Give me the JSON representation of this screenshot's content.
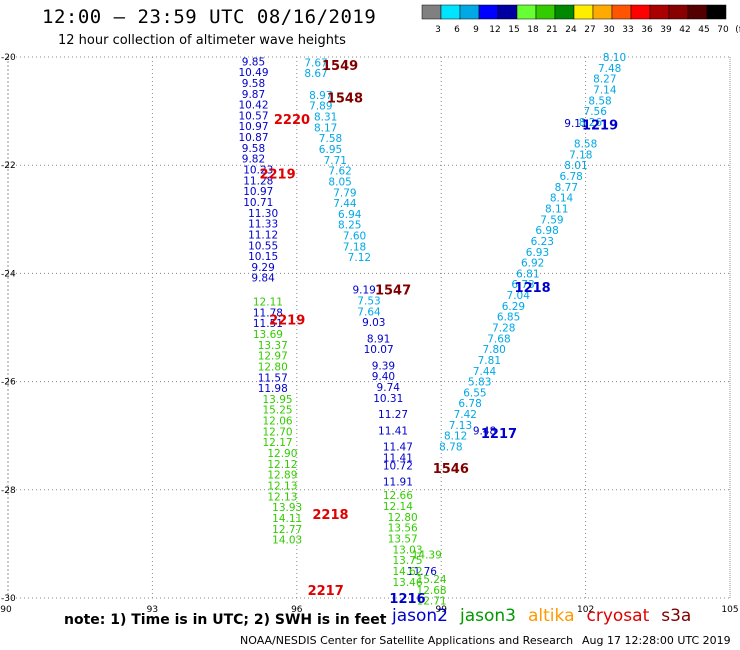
{
  "header": {
    "title": "12:00 – 23:59 UTC 08/16/2019",
    "subtitle": "12 hour collection of altimeter wave heights"
  },
  "colorbar": {
    "labels": [
      "3",
      "6",
      "9",
      "12",
      "15",
      "18",
      "21",
      "24",
      "27",
      "30",
      "33",
      "36",
      "39",
      "42",
      "45",
      "70",
      "(ft)"
    ],
    "colors": [
      "#808080",
      "#00e5ff",
      "#00a8e6",
      "#0000ff",
      "#0000a0",
      "#66ff33",
      "#33cc00",
      "#008800",
      "#ffee00",
      "#ffaa00",
      "#ff5500",
      "#ff0000",
      "#aa0000",
      "#880000",
      "#550000",
      "#000000"
    ]
  },
  "chart_data": {
    "type": "scatter",
    "title": "12 hour collection of altimeter wave heights",
    "xlim": [
      90,
      105
    ],
    "ylim": [
      -30,
      -20
    ],
    "xticks": [
      "90",
      "93",
      "96",
      "99",
      "102",
      "105"
    ],
    "yticks": [
      "-20",
      "-22",
      "-24",
      "-26",
      "-28",
      "-30"
    ],
    "grid": true,
    "series": [
      {
        "name": "jason2",
        "color": "#0000cc",
        "points": [
          {
            "lon": 95.1,
            "lat": -20.08,
            "v": "9.85"
          },
          {
            "lon": 95.1,
            "lat": -20.28,
            "v": "10.49"
          },
          {
            "lon": 95.1,
            "lat": -20.48,
            "v": "9.58"
          },
          {
            "lon": 95.1,
            "lat": -20.68,
            "v": "9.87"
          },
          {
            "lon": 95.1,
            "lat": -20.88,
            "v": "10.42"
          },
          {
            "lon": 95.1,
            "lat": -21.08,
            "v": "10.57"
          },
          {
            "lon": 95.1,
            "lat": -21.28,
            "v": "10.97"
          },
          {
            "lon": 95.1,
            "lat": -21.48,
            "v": "10.87"
          },
          {
            "lon": 95.1,
            "lat": -21.68,
            "v": "9.58"
          },
          {
            "lon": 95.1,
            "lat": -21.88,
            "v": "9.82"
          },
          {
            "lon": 95.2,
            "lat": -22.08,
            "v": "10.23"
          },
          {
            "lon": 95.2,
            "lat": -22.28,
            "v": "11.28"
          },
          {
            "lon": 95.2,
            "lat": -22.48,
            "v": "10.97"
          },
          {
            "lon": 95.2,
            "lat": -22.68,
            "v": "10.71"
          },
          {
            "lon": 95.3,
            "lat": -22.88,
            "v": "11.30"
          },
          {
            "lon": 95.3,
            "lat": -23.08,
            "v": "11.33"
          },
          {
            "lon": 95.3,
            "lat": -23.28,
            "v": "11.12"
          },
          {
            "lon": 95.3,
            "lat": -23.48,
            "v": "10.55"
          },
          {
            "lon": 95.3,
            "lat": -23.68,
            "v": "10.15"
          },
          {
            "lon": 95.3,
            "lat": -23.88,
            "v": "9.29"
          },
          {
            "lon": 95.3,
            "lat": -24.08,
            "v": "9.84"
          },
          {
            "lon": 95.4,
            "lat": -24.72,
            "v": "11.78"
          },
          {
            "lon": 95.4,
            "lat": -24.92,
            "v": "11.51"
          },
          {
            "lon": 95.5,
            "lat": -25.92,
            "v": "11.57"
          },
          {
            "lon": 95.5,
            "lat": -26.12,
            "v": "11.98"
          },
          {
            "lon": 97.4,
            "lat": -24.3,
            "v": "9.19"
          },
          {
            "lon": 97.6,
            "lat": -24.9,
            "v": "9.03"
          },
          {
            "lon": 97.7,
            "lat": -25.2,
            "v": "8.91"
          },
          {
            "lon": 97.7,
            "lat": -25.4,
            "v": "10.07"
          },
          {
            "lon": 97.8,
            "lat": -25.7,
            "v": "9.39"
          },
          {
            "lon": 97.8,
            "lat": -25.9,
            "v": "9.40"
          },
          {
            "lon": 97.9,
            "lat": -26.1,
            "v": "9.74"
          },
          {
            "lon": 97.9,
            "lat": -26.3,
            "v": "10.31"
          },
          {
            "lon": 98.0,
            "lat": -26.6,
            "v": "11.27"
          },
          {
            "lon": 98.0,
            "lat": -26.9,
            "v": "11.41"
          },
          {
            "lon": 98.1,
            "lat": -27.2,
            "v": "11.47"
          },
          {
            "lon": 98.1,
            "lat": -27.4,
            "v": "11.41"
          },
          {
            "lon": 98.1,
            "lat": -27.55,
            "v": "10.72"
          },
          {
            "lon": 98.1,
            "lat": -27.85,
            "v": "11.91"
          },
          {
            "lon": 98.6,
            "lat": -29.5,
            "v": "11.76"
          },
          {
            "lon": 99.9,
            "lat": -26.9,
            "v": "9.48"
          },
          {
            "lon": 101.8,
            "lat": -21.22,
            "v": "9.11"
          }
        ]
      },
      {
        "name": "jason3",
        "color": "#33cc00",
        "points": [
          {
            "lon": 95.4,
            "lat": -24.52,
            "v": "12.11"
          },
          {
            "lon": 95.4,
            "lat": -25.12,
            "v": "13.69"
          },
          {
            "lon": 95.5,
            "lat": -25.32,
            "v": "13.37"
          },
          {
            "lon": 95.5,
            "lat": -25.52,
            "v": "12.97"
          },
          {
            "lon": 95.5,
            "lat": -25.72,
            "v": "12.80"
          },
          {
            "lon": 95.6,
            "lat": -26.32,
            "v": "13.95"
          },
          {
            "lon": 95.6,
            "lat": -26.52,
            "v": "15.25"
          },
          {
            "lon": 95.6,
            "lat": -26.72,
            "v": "12.06"
          },
          {
            "lon": 95.6,
            "lat": -26.92,
            "v": "12.70"
          },
          {
            "lon": 95.6,
            "lat": -27.12,
            "v": "12.17"
          },
          {
            "lon": 95.7,
            "lat": -27.32,
            "v": "12.90"
          },
          {
            "lon": 95.7,
            "lat": -27.52,
            "v": "12.12"
          },
          {
            "lon": 95.7,
            "lat": -27.72,
            "v": "12.89"
          },
          {
            "lon": 95.7,
            "lat": -27.92,
            "v": "12.13"
          },
          {
            "lon": 95.7,
            "lat": -28.12,
            "v": "12.13"
          },
          {
            "lon": 95.8,
            "lat": -28.32,
            "v": "13.93"
          },
          {
            "lon": 95.8,
            "lat": -28.52,
            "v": "14.11"
          },
          {
            "lon": 95.8,
            "lat": -28.72,
            "v": "12.77"
          },
          {
            "lon": 95.8,
            "lat": -28.92,
            "v": "14.03"
          },
          {
            "lon": 98.1,
            "lat": -28.1,
            "v": "12.66"
          },
          {
            "lon": 98.1,
            "lat": -28.3,
            "v": "12.14"
          },
          {
            "lon": 98.2,
            "lat": -28.5,
            "v": "12.80"
          },
          {
            "lon": 98.2,
            "lat": -28.7,
            "v": "13.56"
          },
          {
            "lon": 98.2,
            "lat": -28.9,
            "v": "13.57"
          },
          {
            "lon": 98.3,
            "lat": -29.1,
            "v": "13.03"
          },
          {
            "lon": 98.3,
            "lat": -29.3,
            "v": "13.75"
          },
          {
            "lon": 98.3,
            "lat": -29.5,
            "v": "14.62"
          },
          {
            "lon": 98.3,
            "lat": -29.7,
            "v": "13.46"
          },
          {
            "lon": 98.7,
            "lat": -29.2,
            "v": "14.39"
          },
          {
            "lon": 98.8,
            "lat": -29.65,
            "v": "15.24"
          },
          {
            "lon": 98.8,
            "lat": -29.85,
            "v": "12.68"
          },
          {
            "lon": 98.8,
            "lat": -30.05,
            "v": "12.71"
          }
        ]
      },
      {
        "name": "altika",
        "color": "#00a8e6",
        "points": [
          {
            "lon": 96.4,
            "lat": -20.1,
            "v": "7.67"
          },
          {
            "lon": 96.4,
            "lat": -20.3,
            "v": "8.67"
          },
          {
            "lon": 96.5,
            "lat": -20.7,
            "v": "8.97"
          },
          {
            "lon": 96.5,
            "lat": -20.9,
            "v": "7.89"
          },
          {
            "lon": 96.6,
            "lat": -21.1,
            "v": "8.31"
          },
          {
            "lon": 96.6,
            "lat": -21.3,
            "v": "8.17"
          },
          {
            "lon": 96.7,
            "lat": -21.5,
            "v": "7.58"
          },
          {
            "lon": 96.7,
            "lat": -21.7,
            "v": "6.95"
          },
          {
            "lon": 96.8,
            "lat": -21.9,
            "v": "7.71"
          },
          {
            "lon": 96.9,
            "lat": -22.1,
            "v": "7.62"
          },
          {
            "lon": 96.9,
            "lat": -22.3,
            "v": "8.05"
          },
          {
            "lon": 97.0,
            "lat": -22.5,
            "v": "7.79"
          },
          {
            "lon": 97.0,
            "lat": -22.7,
            "v": "7.44"
          },
          {
            "lon": 97.1,
            "lat": -22.9,
            "v": "6.94"
          },
          {
            "lon": 97.1,
            "lat": -23.1,
            "v": "8.25"
          },
          {
            "lon": 97.2,
            "lat": -23.3,
            "v": "7.60"
          },
          {
            "lon": 97.2,
            "lat": -23.5,
            "v": "7.18"
          },
          {
            "lon": 97.3,
            "lat": -23.7,
            "v": "7.12"
          },
          {
            "lon": 97.5,
            "lat": -24.5,
            "v": "7.53"
          },
          {
            "lon": 97.5,
            "lat": -24.7,
            "v": "7.64"
          },
          {
            "lon": 102.6,
            "lat": -20.0,
            "v": "8.10"
          },
          {
            "lon": 102.5,
            "lat": -20.2,
            "v": "7.48"
          },
          {
            "lon": 102.4,
            "lat": -20.4,
            "v": "8.27"
          },
          {
            "lon": 102.4,
            "lat": -20.6,
            "v": "7.14"
          },
          {
            "lon": 102.3,
            "lat": -20.8,
            "v": "8.58"
          },
          {
            "lon": 102.2,
            "lat": -21.0,
            "v": "7.56"
          },
          {
            "lon": 102.1,
            "lat": -21.2,
            "v": "8.26"
          },
          {
            "lon": 102.0,
            "lat": -21.6,
            "v": "8.58"
          },
          {
            "lon": 101.9,
            "lat": -21.8,
            "v": "7.18"
          },
          {
            "lon": 101.8,
            "lat": -22.0,
            "v": "8.01"
          },
          {
            "lon": 101.7,
            "lat": -22.2,
            "v": "6.78"
          },
          {
            "lon": 101.6,
            "lat": -22.4,
            "v": "8.77"
          },
          {
            "lon": 101.5,
            "lat": -22.6,
            "v": "8.14"
          },
          {
            "lon": 101.4,
            "lat": -22.8,
            "v": "8.11"
          },
          {
            "lon": 101.3,
            "lat": -23.0,
            "v": "7.59"
          },
          {
            "lon": 101.2,
            "lat": -23.2,
            "v": "6.98"
          },
          {
            "lon": 101.1,
            "lat": -23.4,
            "v": "6.23"
          },
          {
            "lon": 101.0,
            "lat": -23.6,
            "v": "6.93"
          },
          {
            "lon": 100.9,
            "lat": -23.8,
            "v": "6.92"
          },
          {
            "lon": 100.8,
            "lat": -24.0,
            "v": "6.81"
          },
          {
            "lon": 100.7,
            "lat": -24.2,
            "v": "6.73"
          },
          {
            "lon": 100.6,
            "lat": -24.4,
            "v": "7.04"
          },
          {
            "lon": 100.5,
            "lat": -24.6,
            "v": "6.29"
          },
          {
            "lon": 100.4,
            "lat": -24.8,
            "v": "6.85"
          },
          {
            "lon": 100.3,
            "lat": -25.0,
            "v": "7.28"
          },
          {
            "lon": 100.2,
            "lat": -25.2,
            "v": "7.68"
          },
          {
            "lon": 100.1,
            "lat": -25.4,
            "v": "7.80"
          },
          {
            "lon": 100.0,
            "lat": -25.6,
            "v": "7.81"
          },
          {
            "lon": 99.9,
            "lat": -25.8,
            "v": "7.44"
          },
          {
            "lon": 99.8,
            "lat": -26.0,
            "v": "5.83"
          },
          {
            "lon": 99.7,
            "lat": -26.2,
            "v": "6.55"
          },
          {
            "lon": 99.6,
            "lat": -26.4,
            "v": "6.78"
          },
          {
            "lon": 99.5,
            "lat": -26.6,
            "v": "7.42"
          },
          {
            "lon": 99.4,
            "lat": -26.8,
            "v": "7.13"
          },
          {
            "lon": 99.3,
            "lat": -27.0,
            "v": "8.12"
          },
          {
            "lon": 99.2,
            "lat": -27.2,
            "v": "8.78"
          }
        ]
      }
    ],
    "track_labels": [
      {
        "lon": 96.9,
        "lat": -20.15,
        "text": "1549",
        "color": "#800000"
      },
      {
        "lon": 97.0,
        "lat": -20.75,
        "text": "1548",
        "color": "#800000"
      },
      {
        "lon": 95.9,
        "lat": -21.15,
        "text": "2220",
        "color": "#e00000"
      },
      {
        "lon": 102.3,
        "lat": -21.25,
        "text": "1219",
        "color": "#0000cc"
      },
      {
        "lon": 95.6,
        "lat": -22.15,
        "text": "2219",
        "color": "#e00000"
      },
      {
        "lon": 100.9,
        "lat": -24.25,
        "text": "1218",
        "color": "#0000cc"
      },
      {
        "lon": 98.0,
        "lat": -24.3,
        "text": "1547",
        "color": "#800000"
      },
      {
        "lon": 95.8,
        "lat": -24.85,
        "text": "2219",
        "color": "#e00000"
      },
      {
        "lon": 100.2,
        "lat": -26.95,
        "text": "1217",
        "color": "#0000cc"
      },
      {
        "lon": 99.2,
        "lat": -27.6,
        "text": "1546",
        "color": "#800000"
      },
      {
        "lon": 96.7,
        "lat": -28.45,
        "text": "2218",
        "color": "#e00000"
      },
      {
        "lon": 96.6,
        "lat": -29.85,
        "text": "2217",
        "color": "#e00000"
      },
      {
        "lon": 98.3,
        "lat": -30.0,
        "text": "1216",
        "color": "#0000cc"
      }
    ]
  },
  "footer": {
    "note": "note:  1) Time is in UTC;  2) SWH is in feet",
    "satellites": [
      {
        "name": "jason2",
        "color": "#0000cc"
      },
      {
        "name": "jason3",
        "color": "#009900"
      },
      {
        "name": "altika",
        "color": "#ff9900"
      },
      {
        "name": "cryosat",
        "color": "#e00000"
      },
      {
        "name": "s3a",
        "color": "#800000"
      }
    ],
    "credit": "NOAA/NESDIS Center for Satellite Applications and Research",
    "timestamp": "Aug 17 12:28:00 UTC 2019"
  }
}
